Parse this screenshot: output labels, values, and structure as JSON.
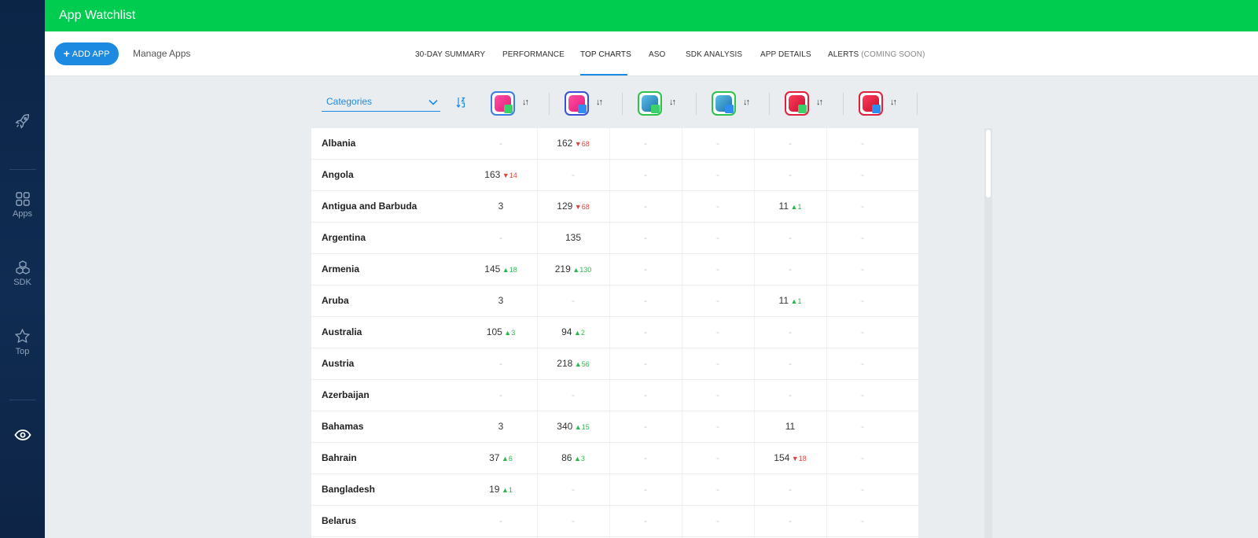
{
  "app_title": "App Watchlist",
  "sidebar": {
    "items": [
      {
        "name": "rocket",
        "label": ""
      },
      {
        "name": "apps",
        "label": "Apps"
      },
      {
        "name": "sdk",
        "label": "SDK"
      },
      {
        "name": "top",
        "label": "Top"
      },
      {
        "name": "eye",
        "label": ""
      }
    ]
  },
  "toolbar": {
    "add_app_label": "ADD APP",
    "manage_apps_label": "Manage Apps"
  },
  "tabs": [
    {
      "label": "30-DAY SUMMARY"
    },
    {
      "label": "PERFORMANCE"
    },
    {
      "label": "TOP CHARTS",
      "active": true
    },
    {
      "label": "ASO"
    },
    {
      "label": "SDK ANALYSIS"
    },
    {
      "label": "APP DETAILS"
    },
    {
      "label": "ALERTS",
      "suffix": "(COMING SOON)"
    }
  ],
  "filter": {
    "category_label": "Categories"
  },
  "apps": [
    {
      "icon": "pink-app-icon",
      "store": "google-play",
      "border": "#3b7de0"
    },
    {
      "icon": "pink-app-icon",
      "store": "app-store",
      "border": "#3b4fd8"
    },
    {
      "icon": "portrait-app-icon",
      "store": "google-play",
      "border": "#2ec24a"
    },
    {
      "icon": "portrait-app-icon",
      "store": "app-store",
      "border": "#2ec24a"
    },
    {
      "icon": "lr-app-icon",
      "store": "google-play",
      "border": "#e0203c"
    },
    {
      "icon": "lr-app-icon",
      "store": "app-store",
      "border": "#e0203c"
    }
  ],
  "rows": [
    {
      "country": "Albania",
      "cells": [
        [
          "-"
        ],
        [
          "162",
          "down",
          "68"
        ],
        [
          "-"
        ],
        [
          "-"
        ],
        [
          "-"
        ],
        [
          "-"
        ]
      ]
    },
    {
      "country": "Angola",
      "cells": [
        [
          "163",
          "down",
          "14"
        ],
        [
          "-"
        ],
        [
          "-"
        ],
        [
          "-"
        ],
        [
          "-"
        ],
        [
          "-"
        ]
      ]
    },
    {
      "country": "Antigua and Barbuda",
      "cells": [
        [
          "3"
        ],
        [
          "129",
          "down",
          "68"
        ],
        [
          "-"
        ],
        [
          "-"
        ],
        [
          "11",
          "up",
          "1"
        ],
        [
          "-"
        ]
      ]
    },
    {
      "country": "Argentina",
      "cells": [
        [
          "-"
        ],
        [
          "135"
        ],
        [
          "-"
        ],
        [
          "-"
        ],
        [
          "-"
        ],
        [
          "-"
        ]
      ]
    },
    {
      "country": "Armenia",
      "cells": [
        [
          "145",
          "up",
          "18"
        ],
        [
          "219",
          "up",
          "130"
        ],
        [
          "-"
        ],
        [
          "-"
        ],
        [
          "-"
        ],
        [
          "-"
        ]
      ]
    },
    {
      "country": "Aruba",
      "cells": [
        [
          "3"
        ],
        [
          "-"
        ],
        [
          "-"
        ],
        [
          "-"
        ],
        [
          "11",
          "up",
          "1"
        ],
        [
          "-"
        ]
      ]
    },
    {
      "country": "Australia",
      "cells": [
        [
          "105",
          "up",
          "3"
        ],
        [
          "94",
          "up",
          "2"
        ],
        [
          "-"
        ],
        [
          "-"
        ],
        [
          "-"
        ],
        [
          "-"
        ]
      ]
    },
    {
      "country": "Austria",
      "cells": [
        [
          "-"
        ],
        [
          "218",
          "up",
          "56"
        ],
        [
          "-"
        ],
        [
          "-"
        ],
        [
          "-"
        ],
        [
          "-"
        ]
      ]
    },
    {
      "country": "Azerbaijan",
      "cells": [
        [
          "-"
        ],
        [
          "-"
        ],
        [
          "-"
        ],
        [
          "-"
        ],
        [
          "-"
        ],
        [
          "-"
        ]
      ]
    },
    {
      "country": "Bahamas",
      "cells": [
        [
          "3"
        ],
        [
          "340",
          "up",
          "15"
        ],
        [
          "-"
        ],
        [
          "-"
        ],
        [
          "11"
        ],
        [
          "-"
        ]
      ]
    },
    {
      "country": "Bahrain",
      "cells": [
        [
          "37",
          "up",
          "6"
        ],
        [
          "86",
          "up",
          "3"
        ],
        [
          "-"
        ],
        [
          "-"
        ],
        [
          "154",
          "down",
          "18"
        ],
        [
          "-"
        ]
      ]
    },
    {
      "country": "Bangladesh",
      "cells": [
        [
          "19",
          "up",
          "1"
        ],
        [
          "-"
        ],
        [
          "-"
        ],
        [
          "-"
        ],
        [
          "-"
        ],
        [
          "-"
        ]
      ]
    },
    {
      "country": "Belarus",
      "cells": [
        [
          "-"
        ],
        [
          "-"
        ],
        [
          "-"
        ],
        [
          "-"
        ],
        [
          "-"
        ],
        [
          "-"
        ]
      ]
    }
  ],
  "colors": {
    "brand_green": "#00cc4f",
    "accent_blue": "#1c8ae0",
    "up": "#2db84f",
    "down": "#e04545",
    "sidebar": "#0b2547"
  }
}
